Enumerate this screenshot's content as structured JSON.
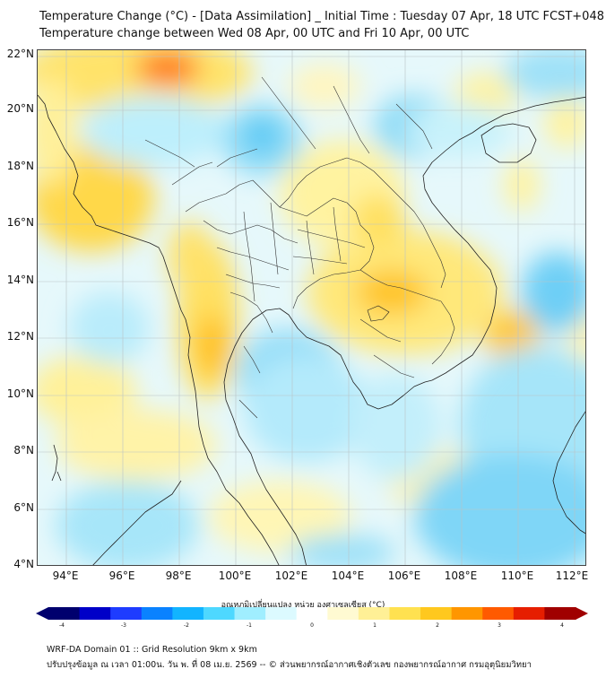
{
  "title_line1": "Temperature Change (°C) - [Data Assimilation] _ Initial Time : Tuesday 07 Apr, 18 UTC FCST+048",
  "title_line2": "Temperature change between Wed 08 Apr, 00 UTC and Fri 10 Apr, 00 UTC",
  "lat_labels": [
    "22°N",
    "20°N",
    "18°N",
    "16°N",
    "14°N",
    "12°N",
    "10°N",
    "8°N",
    "6°N",
    "4°N"
  ],
  "lon_labels": [
    "94°E",
    "96°E",
    "98°E",
    "100°E",
    "102°E",
    "104°E",
    "106°E",
    "108°E",
    "110°E",
    "112°E"
  ],
  "colorbar": {
    "title": "อุณหภูมิเปลี่ยนแปลง หน่วย องศาเซลเซียส (°C)",
    "tick_labels": [
      "-4",
      "-3",
      "-2",
      "-1",
      "0",
      "1",
      "2",
      "3",
      "4"
    ],
    "colors": [
      "#00006e",
      "#0000c8",
      "#1e3cff",
      "#0a82ff",
      "#12b4ff",
      "#4ed8ff",
      "#a0eeff",
      "#dcfaff",
      "#ffffff",
      "#fffad2",
      "#fff096",
      "#ffe150",
      "#ffc81e",
      "#ff9600",
      "#ff5a00",
      "#e61e00",
      "#a00000"
    ]
  },
  "footer_line1": "WRF-DA Domain 01 :: Grid Resolution 9km x 9km",
  "footer_line2": "ปรับปรุงข้อมูล ณ เวลา 01:00น. วัน พ. ที่ 08 เม.ย. 2569 -- © ส่วนพยากรณ์อากาศเชิงตัวเลข กองพยากรณ์อากาศ กรมอุตุนิยมวิทยา"
}
